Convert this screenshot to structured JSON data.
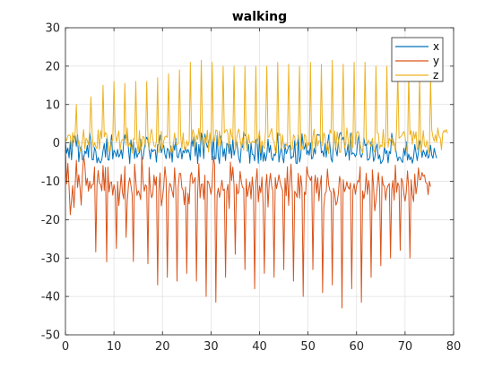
{
  "chart_data": {
    "type": "line",
    "title": "walking",
    "xlabel": "",
    "ylabel": "",
    "xlim": [
      0,
      80
    ],
    "ylim": [
      -50,
      30
    ],
    "xticks": [
      0,
      10,
      20,
      30,
      40,
      50,
      60,
      70,
      80
    ],
    "yticks": [
      30,
      20,
      10,
      0,
      -10,
      -20,
      -30,
      -40,
      -50
    ],
    "grid": true,
    "legend_position": "top-right",
    "sample_interval": 0.25,
    "series": [
      {
        "name": "x",
        "color": "#0072BD",
        "values": [
          0.0,
          -2.7,
          -1.3,
          -3.9,
          0.4,
          -4.4,
          -0.1,
          1.7,
          1.9,
          -0.9,
          2.2,
          -4.9,
          -1.6,
          -0.9,
          -4.4,
          -4.2,
          -2.1,
          -2.8,
          -0.6,
          -3.8,
          2.8,
          0.2,
          -4.4,
          -4.4,
          -1.2,
          -2.1,
          -5.2,
          -3.8,
          -4.9,
          -5.2,
          -4.3,
          -2.0,
          -0.2,
          -3.7,
          1.1,
          -4.4,
          -4.5,
          -1.3,
          2.1,
          -4.2,
          -1.9,
          -2.5,
          -3.6,
          -1.7,
          -3.7,
          -3.0,
          -1.8,
          -4.1,
          -0.0,
          2.1,
          0.5,
          2.4,
          -1.7,
          -5.4,
          0.8,
          -1.8,
          0.4,
          -4.1,
          -1.3,
          -3.8,
          -2.8,
          -2.6,
          1.0,
          -4.6,
          -4.0,
          -1.5,
          0.6,
          1.5,
          0.7,
          -1.9,
          -4.2,
          -1.6,
          -2.3,
          -1.8,
          -1.8,
          -5.0,
          -0.5,
          -0.4,
          2.0,
          -2.6,
          -1.5,
          -0.6,
          -3.0,
          -4.1,
          -1.4,
          -1.8,
          -4.0,
          -0.8,
          -5.0,
          -0.1,
          -1.9,
          1.2,
          -3.5,
          -3.9,
          -2.3,
          -1.4,
          -4.2,
          -2.0,
          -2.6,
          -1.1,
          -2.6,
          -1.7,
          -2.5,
          -4.5,
          1.7,
          -0.9,
          1.8,
          -3.4,
          0.1,
          -5.4,
          -0.4,
          -3.6,
          2.6,
          1.1,
          -4.1,
          2.3,
          0.1,
          -1.2,
          -0.1,
          1.5,
          2.0,
          -4.4,
          2.1,
          -4.2,
          -4.1,
          1.9,
          -3.4,
          -5.4,
          1.8,
          0.3,
          -3.6,
          -1.5,
          -4.6,
          -0.2,
          -0.4,
          -2.8,
          -0.4,
          -4.0,
          1.2,
          -3.2,
          -1.6,
          0.5,
          -1.6,
          -4.1,
          -5.2,
          -0.9,
          -1.2,
          2.9,
          2.0,
          1.7,
          -2.2,
          -0.4,
          -5.3,
          -0.0,
          -3.0,
          -3.1,
          -4.7,
          0.7,
          1.1,
          -5.3,
          1.8,
          -4.5,
          -0.6,
          -4.8,
          -2.5,
          -4.7,
          -3.1,
          1.0,
          -2.5,
          -0.6,
          -4.0,
          -4.6,
          -2.9,
          -3.3,
          -0.4,
          2.6,
          -5.0,
          -2.6,
          -0.9,
          -3.7,
          -5.2,
          -0.3,
          -2.8,
          -2.0,
          -0.9,
          -0.6,
          -4.1,
          -3.6,
          -3.6,
          0.6,
          -5.2,
          -5.4,
          2.1,
          -5.0,
          -3.4,
          2.4,
          -0.6,
          -1.6,
          -0.1,
          -3.0,
          -1.9,
          -3.2,
          -0.0,
          -4.2,
          -3.8,
          -1.4,
          -2.9,
          1.6,
          2.2,
          2.0,
          2.1,
          -2.6,
          -2.1,
          -3.6,
          -0.2,
          -3.7,
          -0.7,
          2.1,
          -0.5,
          -4.1,
          -5.0,
          -0.0,
          2.4,
          -1.8,
          -3.4,
          0.3,
          2.4,
          2.7,
          0.8,
          1.5,
          0.1,
          -3.5,
          -2.5,
          -0.3,
          -4.5,
          2.5,
          -3.0,
          -2.6,
          -2.8,
          -3.6,
          -2.8,
          0.7,
          2.0,
          -2.9,
          -3.8,
          -2.6,
          1.4,
          -0.7,
          -0.3,
          -4.5,
          -4.4,
          -3.8,
          0.3,
          -0.9,
          -4.8,
          -3.9,
          -1.3,
          -0.3,
          -4.2,
          -3.1,
          -5.4,
          -4.9,
          -4.2,
          -0.7,
          -2.8,
          -2.0,
          -5.2,
          -2.2,
          -2.8,
          2.5,
          0.3,
          -0.1,
          -1.1,
          -3.1,
          -4.7,
          -3.7,
          -3.8,
          -4.6,
          -5.1,
          -1.4,
          -3.3,
          0.3,
          -4.5,
          -2.9,
          -4.4,
          -3.6,
          -5.3,
          -3.8,
          -0.4,
          -2.5,
          -4.6,
          -2.4,
          0.6,
          -0.8,
          -3.8,
          -1.9,
          -2.7,
          -3.6,
          -1.9,
          -4.0,
          -3.4,
          -0.6,
          -3.2,
          -4.0,
          -1.4,
          -2.8,
          -4.0
        ]
      },
      {
        "name": "y",
        "color": "#D95319",
        "values": [
          -2.0,
          -10.7,
          -5.3,
          -11.6,
          -18.7,
          -15.0,
          -11.1,
          -16.8,
          -11.1,
          -4.5,
          -11.6,
          -8.3,
          -11.6,
          -16.2,
          -8.3,
          -3.3,
          -5.8,
          -11.1,
          -9.2,
          -12.6,
          -10.0,
          -11.9,
          -10.9,
          -10.8,
          -6.3,
          -28.4,
          -10.9,
          -7.2,
          -10.5,
          -10.8,
          -12.5,
          -5.9,
          -12.4,
          -6.4,
          -31.0,
          -6.3,
          -12.8,
          -10.3,
          -10.2,
          -13.6,
          -10.9,
          -12.5,
          -27.5,
          -10.1,
          -16.3,
          -12.3,
          -8.2,
          -12.9,
          -14.6,
          -6.1,
          -24.6,
          -15.2,
          -10.8,
          -9.1,
          -11.1,
          -13.4,
          -30.9,
          -5.5,
          -9.6,
          -13.7,
          -12.5,
          -13.2,
          -14.8,
          -3.6,
          -10.2,
          -12.6,
          -10.9,
          -11.4,
          -31.5,
          -6.4,
          -12.1,
          -14.3,
          -13.4,
          -8.4,
          -11.1,
          -8.9,
          -37.0,
          -12.4,
          -7.8,
          -16.4,
          -14.4,
          -11.5,
          -6.2,
          -9.4,
          -35.0,
          -13.6,
          -10.5,
          -11.2,
          -12.7,
          -14.2,
          -6.5,
          -12.1,
          -36.0,
          -11.4,
          -7.9,
          -8.0,
          -11.7,
          -12.3,
          -16.1,
          -11.5,
          -34.0,
          -13.1,
          -15.9,
          -8.5,
          -7.7,
          -10.6,
          -9.8,
          -9.0,
          -36.0,
          -13.0,
          -5.4,
          -14.3,
          -10.8,
          -10.7,
          -14.7,
          -8.4,
          -40.0,
          -9.9,
          -10.2,
          -11.6,
          -13.4,
          -11.1,
          -3.5,
          -5.8,
          -41.5,
          -13.6,
          -11.8,
          -14.2,
          -12.3,
          -9.7,
          -12.4,
          -12.0,
          -35.0,
          -12.6,
          -10.8,
          -17.1,
          -5.0,
          -9.8,
          -6.3,
          -11.0,
          -29.0,
          -10.7,
          -13.3,
          -12.8,
          -7.4,
          -10.1,
          -11.6,
          -11.8,
          -33.0,
          -9.4,
          -14.0,
          -12.1,
          -10.2,
          -14.6,
          -8.9,
          -12.4,
          -38.0,
          -10.3,
          -6.7,
          -15.4,
          -11.2,
          -13.0,
          -8.9,
          -16.1,
          -34.0,
          -11.6,
          -8.2,
          -16.7,
          -10.5,
          -7.9,
          -11.1,
          -12.6,
          -35.0,
          -9.0,
          -11.9,
          -10.3,
          -8.3,
          -10.3,
          -11.5,
          -12.4,
          -33.0,
          -9.2,
          -13.8,
          -6.2,
          -16.3,
          -10.2,
          -5.5,
          -12.7,
          -36.0,
          -12.6,
          -13.2,
          -14.2,
          -7.9,
          -14.4,
          -8.5,
          -11.5,
          -40.0,
          -12.8,
          -13.5,
          -6.2,
          -8.4,
          -8.9,
          -9.8,
          -8.7,
          -33.0,
          -11.4,
          -8.4,
          -13.1,
          -9.1,
          -15.1,
          -10.9,
          -8.5,
          -39.0,
          -16.7,
          -13.2,
          -12.7,
          -6.8,
          -10.9,
          -12.4,
          -12.8,
          -37.0,
          -11.8,
          -13.2,
          -16.2,
          -15.4,
          -13.2,
          -8.7,
          -10.4,
          -43.0,
          -9.6,
          -12.7,
          -11.8,
          -10.1,
          -11.6,
          -12.0,
          -10.4,
          -38.0,
          -12.4,
          -10.6,
          -13.4,
          -11.2,
          -9.8,
          -10.2,
          -6.2,
          -41.5,
          -12.5,
          -14.6,
          -12.6,
          -7.9,
          -13.4,
          -9.8,
          -12.5,
          -35.0,
          -7.0,
          -11.1,
          -17.7,
          -15.0,
          -11.6,
          -7.7,
          -12.0,
          -32.0,
          -8.7,
          -11.0,
          -11.2,
          -14.9,
          -12.0,
          -11.1,
          -10.6,
          -30.0,
          -12.2,
          -9.8,
          -14.9,
          -5.8,
          -12.9,
          -10.4,
          -11.2,
          -28.0,
          -9.2,
          -10.1,
          -13.3,
          -15.2,
          -12.8,
          -7.3,
          -11.7,
          -30.0,
          -9.6,
          -13.5,
          -15.3,
          -8.1,
          -13.3,
          -11.0,
          -6.5,
          -9.6,
          -9.5,
          -7.7,
          -8.7,
          -8.4,
          -10.3,
          -10.5,
          -13.5,
          -10.0,
          -11.4
        ]
      },
      {
        "name": "z",
        "color": "#EDB120",
        "values": [
          1.0,
          0.6,
          1.9,
          2.1,
          1.8,
          -1.5,
          2.7,
          0.2,
          2.8,
          10.0,
          -1.0,
          0.7,
          -2.3,
          -1.4,
          0.7,
          3.5,
          -1.6,
          1.2,
          0.6,
          -0.5,
          3.0,
          12.0,
          2.6,
          -1.3,
          0.1,
          -1.0,
          -1.5,
          3.4,
          -1.7,
          3.2,
          1.1,
          15.0,
          1.6,
          2.7,
          2.2,
          0.1,
          -2.2,
          -2.0,
          0.7,
          0.5,
          16.0,
          2.9,
          0.3,
          1.6,
          3.1,
          -2.0,
          0.4,
          0.9,
          0.5,
          15.5,
          -0.6,
          3.9,
          -0.9,
          -0.0,
          -1.2,
          -2.7,
          1.1,
          0.9,
          16.0,
          0.1,
          -2.4,
          3.2,
          -1.9,
          -0.7,
          1.7,
          1.4,
          -1.1,
          16.0,
          1.7,
          -1.7,
          2.2,
          3.6,
          1.0,
          -0.6,
          -1.1,
          0.4,
          17.0,
          -2.6,
          -1.5,
          3.0,
          -1.5,
          0.4,
          1.6,
          1.8,
          1.4,
          18.0,
          0.2,
          -2.4,
          -2.5,
          -0.3,
          2.6,
          -0.3,
          -0.5,
          -0.1,
          19.0,
          2.0,
          -1.5,
          2.6,
          -1.5,
          -1.7,
          0.6,
          -0.8,
          0.4,
          21.0,
          0.3,
          3.5,
          2.4,
          -1.2,
          2.0,
          0.9,
          3.8,
          0.4,
          21.5,
          3.3,
          -1.2,
          1.4,
          0.1,
          3.3,
          -2.4,
          2.7,
          -0.8,
          21.0,
          0.4,
          0.5,
          3.4,
          3.2,
          -0.8,
          3.1,
          -0.6,
          2.3,
          20.0,
          2.6,
          3.2,
          3.5,
          2.3,
          -1.6,
          3.7,
          1.9,
          0.9,
          20.0,
          -2.2,
          0.9,
          2.8,
          3.6,
          1.0,
          -1.3,
          1.3,
          -1.9,
          20.0,
          -0.0,
          -1.9,
          2.2,
          -0.0,
          0.0,
          0.4,
          0.3,
          0.1,
          20.0,
          -0.3,
          1.2,
          3.2,
          -2.6,
          0.5,
          -1.0,
          -1.5,
          3.2,
          20.0,
          1.4,
          1.7,
          2.8,
          3.8,
          0.9,
          0.4,
          -2.1,
          -2.6,
          21.0,
          1.9,
          2.4,
          -1.7,
          2.1,
          -1.4,
          -1.3,
          -0.3,
          -0.9,
          20.5,
          3.5,
          -1.8,
          -1.6,
          2.1,
          1.6,
          -0.7,
          -0.1,
          1.8,
          20.0,
          -1.7,
          -0.7,
          -1.8,
          2.2,
          1.9,
          -1.5,
          0.1,
          -0.7,
          21.0,
          -2.9,
          1.6,
          3.6,
          -1.8,
          2.2,
          -0.8,
          0.5,
          0.4,
          20.5,
          -0.8,
          2.6,
          1.8,
          -2.1,
          -0.2,
          -2.8,
          3.4,
          2.5,
          21.5,
          -1.7,
          3.1,
          -1.2,
          2.9,
          0.8,
          -2.5,
          -2.4,
          3.9,
          20.5,
          -1.4,
          -0.4,
          3.9,
          0.9,
          -1.9,
          0.8,
          2.7,
          -1.3,
          21.0,
          -0.4,
          2.4,
          3.0,
          2.5,
          -0.5,
          -1.7,
          -2.6,
          1.3,
          21.0,
          1.1,
          -0.6,
          0.7,
          -0.2,
          -1.0,
          1.2,
          -1.9,
          -2.4,
          20.0,
          2.6,
          2.4,
          -1.6,
          -0.5,
          -1.0,
          3.5,
          -1.3,
          0.1,
          20.0,
          -1.1,
          1.2,
          0.5,
          1.4,
          -0.7,
          0.2,
          -2.2,
          3.7,
          19.0,
          1.2,
          1.5,
          1.8,
          2.4,
          3.0,
          1.7,
          -1.3,
          -2.7,
          18.5,
          2.1,
          3.2,
          -0.4,
          3.0,
          1.1,
          2.9,
          -1.8,
          -1.0,
          18.0,
          -2.4,
          -0.4,
          3.2,
          -0.6,
          -1.1,
          0.6,
          -1.7,
          -2.8,
          17.0,
          3.4,
          1.5,
          0.4,
          2.1,
          0.2,
          3.9,
          1.7,
          1.3,
          -1.8,
          2.4,
          3.3,
          2.8,
          3.5,
          2.5
        ]
      }
    ]
  }
}
